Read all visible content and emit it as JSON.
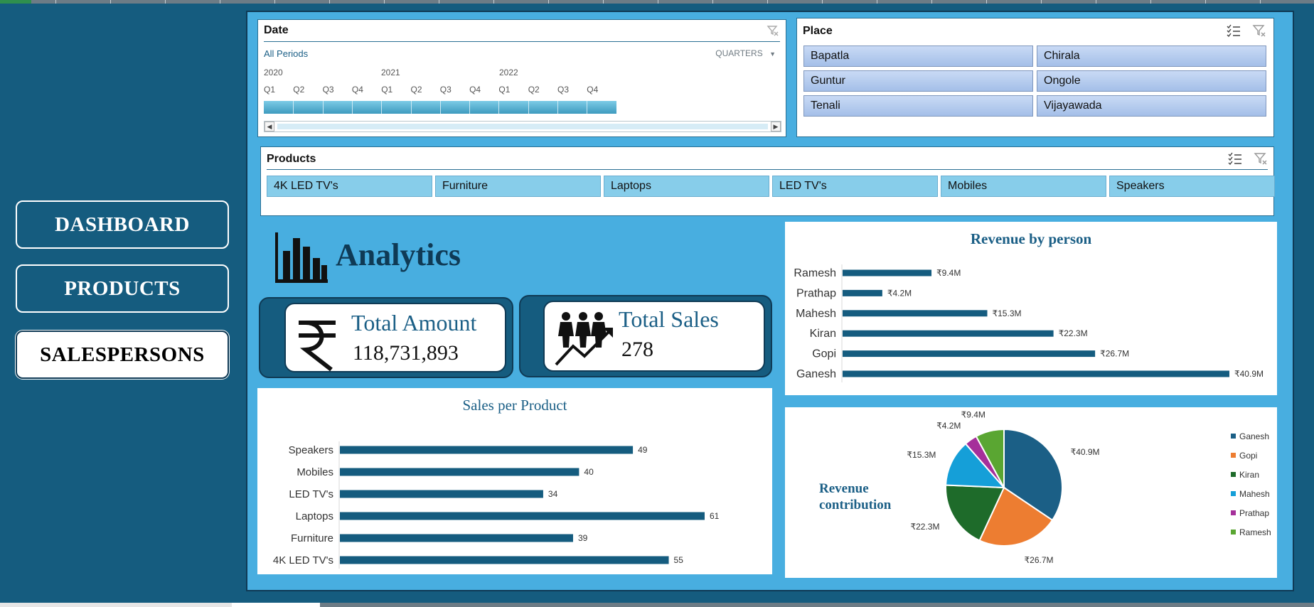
{
  "nav": {
    "dashboard": "DASHBOARD",
    "products": "PRODUCTS",
    "salespersons": "SALESPERSONS"
  },
  "date_slicer": {
    "title": "Date",
    "sub": "All Periods",
    "level": "QUARTERS",
    "years": [
      "2020",
      "2021",
      "2022"
    ],
    "quarters": [
      "Q1",
      "Q2",
      "Q3",
      "Q4",
      "Q1",
      "Q2",
      "Q3",
      "Q4",
      "Q1",
      "Q2",
      "Q3",
      "Q4"
    ]
  },
  "place_slicer": {
    "title": "Place",
    "items": [
      "Bapatla",
      "Chirala",
      "Guntur",
      "Ongole",
      "Tenali",
      "Vijayawada"
    ]
  },
  "products_slicer": {
    "title": "Products",
    "items": [
      "4K LED TV's",
      "Furniture",
      "Laptops",
      "LED TV's",
      "Mobiles",
      "Speakers"
    ]
  },
  "analytics": {
    "title": "Analytics"
  },
  "kpis": {
    "amount_label": "Total Amount",
    "amount_value": "118,731,893",
    "sales_label": "Total Sales",
    "sales_value": "278"
  },
  "colors": {
    "background": "#155c7f",
    "panel_bg": "#48aee0",
    "bar": "#155c7f",
    "title": "#1b5f86"
  },
  "chart_data": [
    {
      "type": "bar",
      "orientation": "horizontal",
      "title": "Sales per Product",
      "categories": [
        "Speakers",
        "Mobiles",
        "LED TV's",
        "Laptops",
        "Furniture",
        "4K LED TV's"
      ],
      "values": [
        49,
        40,
        34,
        61,
        39,
        55
      ],
      "labels": [
        "49",
        "40",
        "34",
        "61",
        "39",
        "55"
      ]
    },
    {
      "type": "bar",
      "orientation": "horizontal",
      "title": "Revenue by person",
      "categories": [
        "Ramesh",
        "Prathap",
        "Mahesh",
        "Kiran",
        "Gopi",
        "Ganesh"
      ],
      "values": [
        9.4,
        4.2,
        15.3,
        22.3,
        26.7,
        40.9
      ],
      "labels": [
        "₹9.4M",
        "₹4.2M",
        "₹15.3M",
        "₹22.3M",
        "₹26.7M",
        "₹40.9M"
      ]
    },
    {
      "type": "pie",
      "title": "Revenue contribution",
      "series": [
        {
          "name": "Ganesh",
          "value": 40.9,
          "label": "₹40.9M",
          "color": "#1b5f86"
        },
        {
          "name": "Gopi",
          "value": 26.7,
          "label": "₹26.7M",
          "color": "#ed7d31"
        },
        {
          "name": "Kiran",
          "value": 22.3,
          "label": "₹22.3M",
          "color": "#1e6b2a"
        },
        {
          "name": "Mahesh",
          "value": 15.3,
          "label": "₹15.3M",
          "color": "#159fd8"
        },
        {
          "name": "Prathap",
          "value": 4.2,
          "label": "₹4.2M",
          "color": "#a5309a"
        },
        {
          "name": "Ramesh",
          "value": 9.4,
          "label": "₹9.4M",
          "color": "#5aa632"
        }
      ],
      "legend": "right"
    }
  ]
}
